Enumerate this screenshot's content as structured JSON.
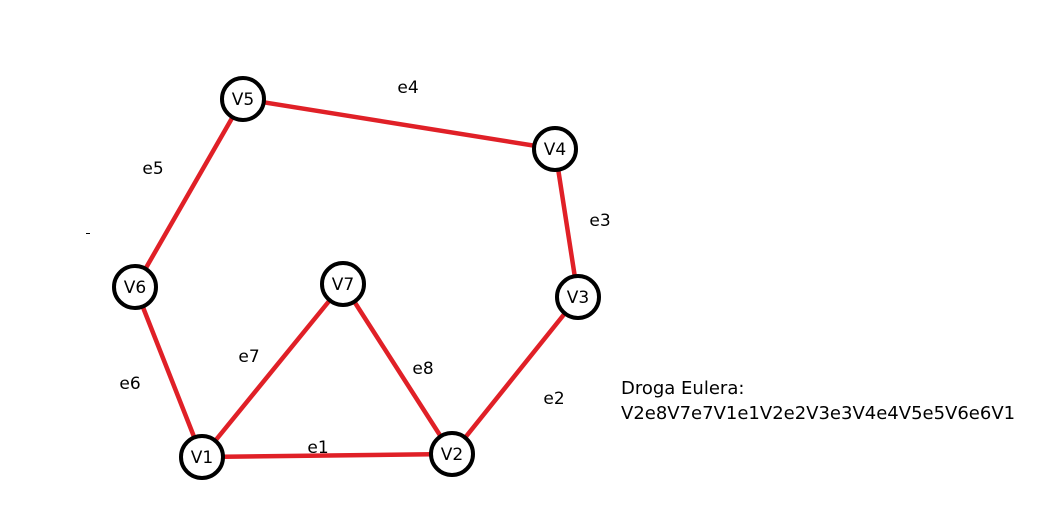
{
  "graph": {
    "nodes": [
      {
        "id": "V1",
        "label": "V1"
      },
      {
        "id": "V2",
        "label": "V2"
      },
      {
        "id": "V3",
        "label": "V3"
      },
      {
        "id": "V4",
        "label": "V4"
      },
      {
        "id": "V5",
        "label": "V5"
      },
      {
        "id": "V6",
        "label": "V6"
      },
      {
        "id": "V7",
        "label": "V7"
      }
    ],
    "edges": [
      {
        "id": "e1",
        "label": "e1",
        "from": "V1",
        "to": "V2"
      },
      {
        "id": "e2",
        "label": "e2",
        "from": "V2",
        "to": "V3"
      },
      {
        "id": "e3",
        "label": "e3",
        "from": "V3",
        "to": "V4"
      },
      {
        "id": "e4",
        "label": "e4",
        "from": "V4",
        "to": "V5"
      },
      {
        "id": "e5",
        "label": "e5",
        "from": "V5",
        "to": "V6"
      },
      {
        "id": "e6",
        "label": "e6",
        "from": "V6",
        "to": "V1"
      },
      {
        "id": "e7",
        "label": "e7",
        "from": "V1",
        "to": "V7"
      },
      {
        "id": "e8",
        "label": "e8",
        "from": "V7",
        "to": "V2"
      }
    ],
    "edge_color": "#e02027",
    "node_stroke_color": "#000000"
  },
  "note": {
    "title": "Droga Eulera:",
    "path": "V2e8V7e7V1e1V2e2V3e3V4e4V5e5V6e6V1"
  }
}
